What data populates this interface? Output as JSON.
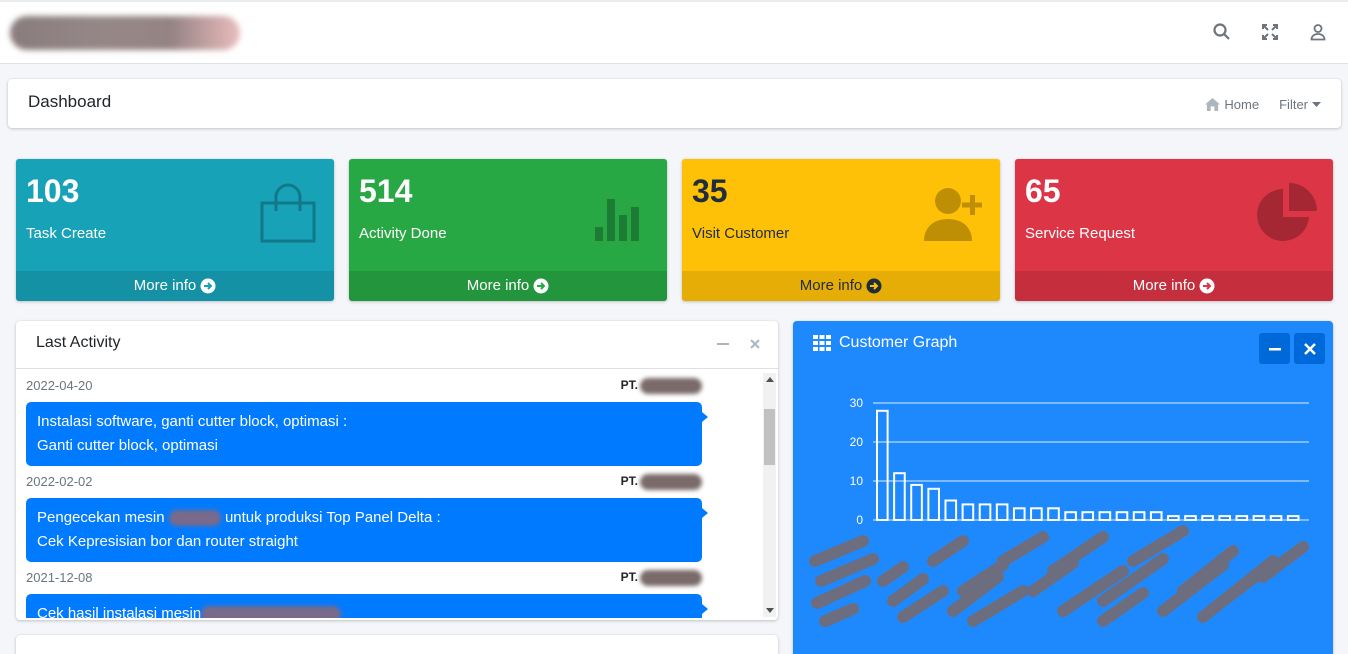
{
  "topbar": {
    "icons": [
      "search-icon",
      "expand-icon",
      "user-icon"
    ]
  },
  "header": {
    "title": "Dashboard",
    "home_label": "Home",
    "filter_label": "Filter"
  },
  "stats": [
    {
      "value": "103",
      "label": "Task Create",
      "more": "More info",
      "color": "#17a2b8",
      "icon": "shopping-bag-icon"
    },
    {
      "value": "514",
      "label": "Activity Done",
      "more": "More info",
      "color": "#28a745",
      "icon": "bar-chart-icon"
    },
    {
      "value": "35",
      "label": "Visit Customer",
      "more": "More info",
      "color": "#ffc107",
      "icon": "user-plus-icon"
    },
    {
      "value": "65",
      "label": "Service Request",
      "more": "More info",
      "color": "#dc3545",
      "icon": "pie-chart-icon"
    }
  ],
  "activity": {
    "title": "Last Activity",
    "messages": [
      {
        "date": "2022-04-20",
        "name": "PT.",
        "line1": "Instalasi software, ganti cutter block, optimasi :",
        "line2": "Ganti cutter block, optimasi"
      },
      {
        "date": "2022-02-02",
        "name": "PT.",
        "line1a": "Pengecekan mesin",
        "line1b": "untuk produksi Top Panel Delta :",
        "line2": "Cek Kepresisian bor dan router straight"
      },
      {
        "date": "2021-12-08",
        "name": "PT.",
        "line1": "Cek hasil instalasi mesin"
      }
    ]
  },
  "graph": {
    "title": "Customer Graph"
  },
  "chart_data": {
    "type": "bar",
    "title": "",
    "ylim": [
      0,
      30
    ],
    "yticks": [
      "30",
      "20",
      "10",
      "0"
    ],
    "values": [
      28,
      12,
      9,
      8,
      5,
      4,
      4,
      4,
      3,
      3,
      3,
      2,
      2,
      2,
      2,
      2,
      2,
      1,
      1,
      1,
      1,
      1,
      1,
      1,
      1
    ],
    "bar_color": "#ffffff",
    "grid": true
  }
}
